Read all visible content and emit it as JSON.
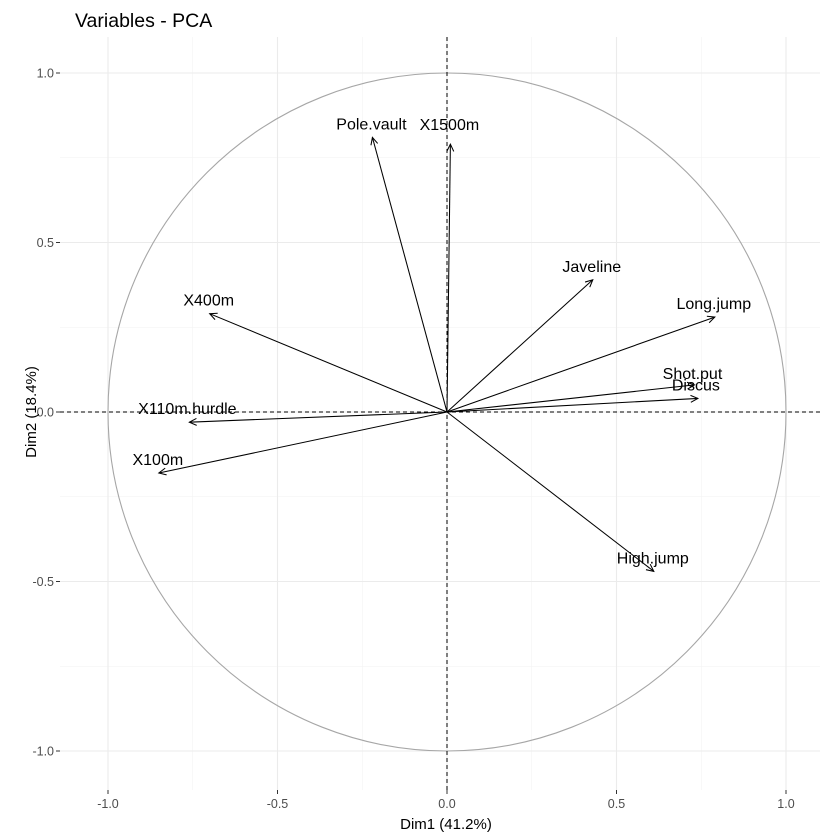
{
  "chart_data": {
    "type": "scatter",
    "subtype": "pca-variable-correlation-circle",
    "title": "Variables - PCA",
    "xlabel": "Dim1 (41.2%)",
    "ylabel": "Dim2 (18.4%)",
    "xlim": [
      -1.0,
      1.0
    ],
    "ylim": [
      -1.0,
      1.0
    ],
    "xticks": [
      -1.0,
      -0.5,
      0.0,
      0.5,
      1.0
    ],
    "xtick_labels": [
      "-1.0",
      "-0.5",
      "0.0",
      "0.5",
      "1.0"
    ],
    "yticks": [
      -1.0,
      -0.5,
      0.0,
      0.5,
      1.0
    ],
    "ytick_labels": [
      "-1.0",
      "-0.5",
      "0.0",
      "0.5",
      "1.0"
    ],
    "grid": true,
    "unit_circle": true,
    "reference_lines": [
      "x = 0",
      "y = 0"
    ],
    "variables": [
      {
        "name": "X100m",
        "x": -0.85,
        "y": -0.18
      },
      {
        "name": "Long.jump",
        "x": 0.79,
        "y": 0.28
      },
      {
        "name": "Shot.put",
        "x": 0.73,
        "y": 0.08
      },
      {
        "name": "High.jump",
        "x": 0.61,
        "y": -0.47
      },
      {
        "name": "X400m",
        "x": -0.7,
        "y": 0.29
      },
      {
        "name": "X110m.hurdle",
        "x": -0.76,
        "y": -0.03
      },
      {
        "name": "Discus",
        "x": 0.74,
        "y": 0.04
      },
      {
        "name": "Pole.vault",
        "x": -0.22,
        "y": 0.81
      },
      {
        "name": "Javeline",
        "x": 0.43,
        "y": 0.39
      },
      {
        "name": "X1500m",
        "x": 0.01,
        "y": 0.79
      }
    ],
    "colors": {
      "arrows": "#000000",
      "circle": "#a6a6a6",
      "grid": "#ebebeb",
      "background": "#ffffff"
    }
  }
}
